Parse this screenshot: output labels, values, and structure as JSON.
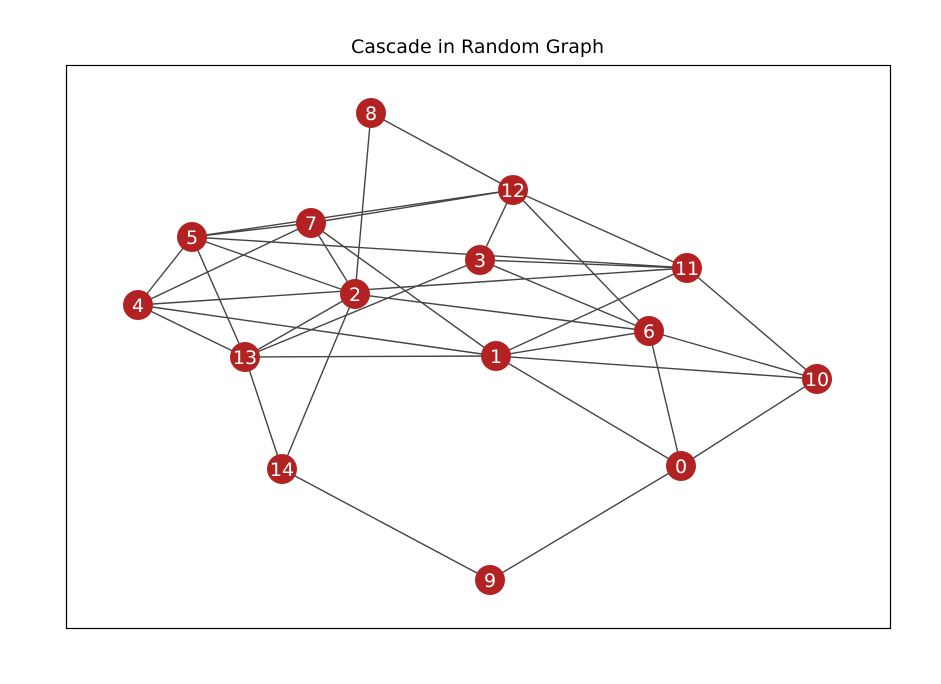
{
  "title": "Cascade in Random Graph",
  "colors": {
    "node": "#b22222",
    "edge": "#444444",
    "label": "#ffffff",
    "frame": "#000000"
  },
  "graph": {
    "nodes": [
      "0",
      "1",
      "2",
      "3",
      "4",
      "5",
      "6",
      "7",
      "8",
      "9",
      "10",
      "11",
      "12",
      "13",
      "14"
    ],
    "edges": [
      [
        "8",
        "12"
      ],
      [
        "8",
        "2"
      ],
      [
        "12",
        "7"
      ],
      [
        "12",
        "5"
      ],
      [
        "12",
        "3"
      ],
      [
        "12",
        "11"
      ],
      [
        "12",
        "6"
      ],
      [
        "7",
        "5"
      ],
      [
        "7",
        "4"
      ],
      [
        "7",
        "2"
      ],
      [
        "7",
        "1"
      ],
      [
        "5",
        "4"
      ],
      [
        "5",
        "2"
      ],
      [
        "5",
        "11"
      ],
      [
        "5",
        "13"
      ],
      [
        "3",
        "6"
      ],
      [
        "3",
        "11"
      ],
      [
        "3",
        "13"
      ],
      [
        "4",
        "11"
      ],
      [
        "4",
        "13"
      ],
      [
        "4",
        "1"
      ],
      [
        "2",
        "6"
      ],
      [
        "2",
        "13"
      ],
      [
        "2",
        "14"
      ],
      [
        "13",
        "1"
      ],
      [
        "13",
        "14"
      ],
      [
        "1",
        "6"
      ],
      [
        "1",
        "11"
      ],
      [
        "1",
        "10"
      ],
      [
        "1",
        "0"
      ],
      [
        "6",
        "10"
      ],
      [
        "6",
        "0"
      ],
      [
        "11",
        "10"
      ],
      [
        "10",
        "0"
      ],
      [
        "14",
        "9"
      ],
      [
        "0",
        "9"
      ]
    ]
  }
}
